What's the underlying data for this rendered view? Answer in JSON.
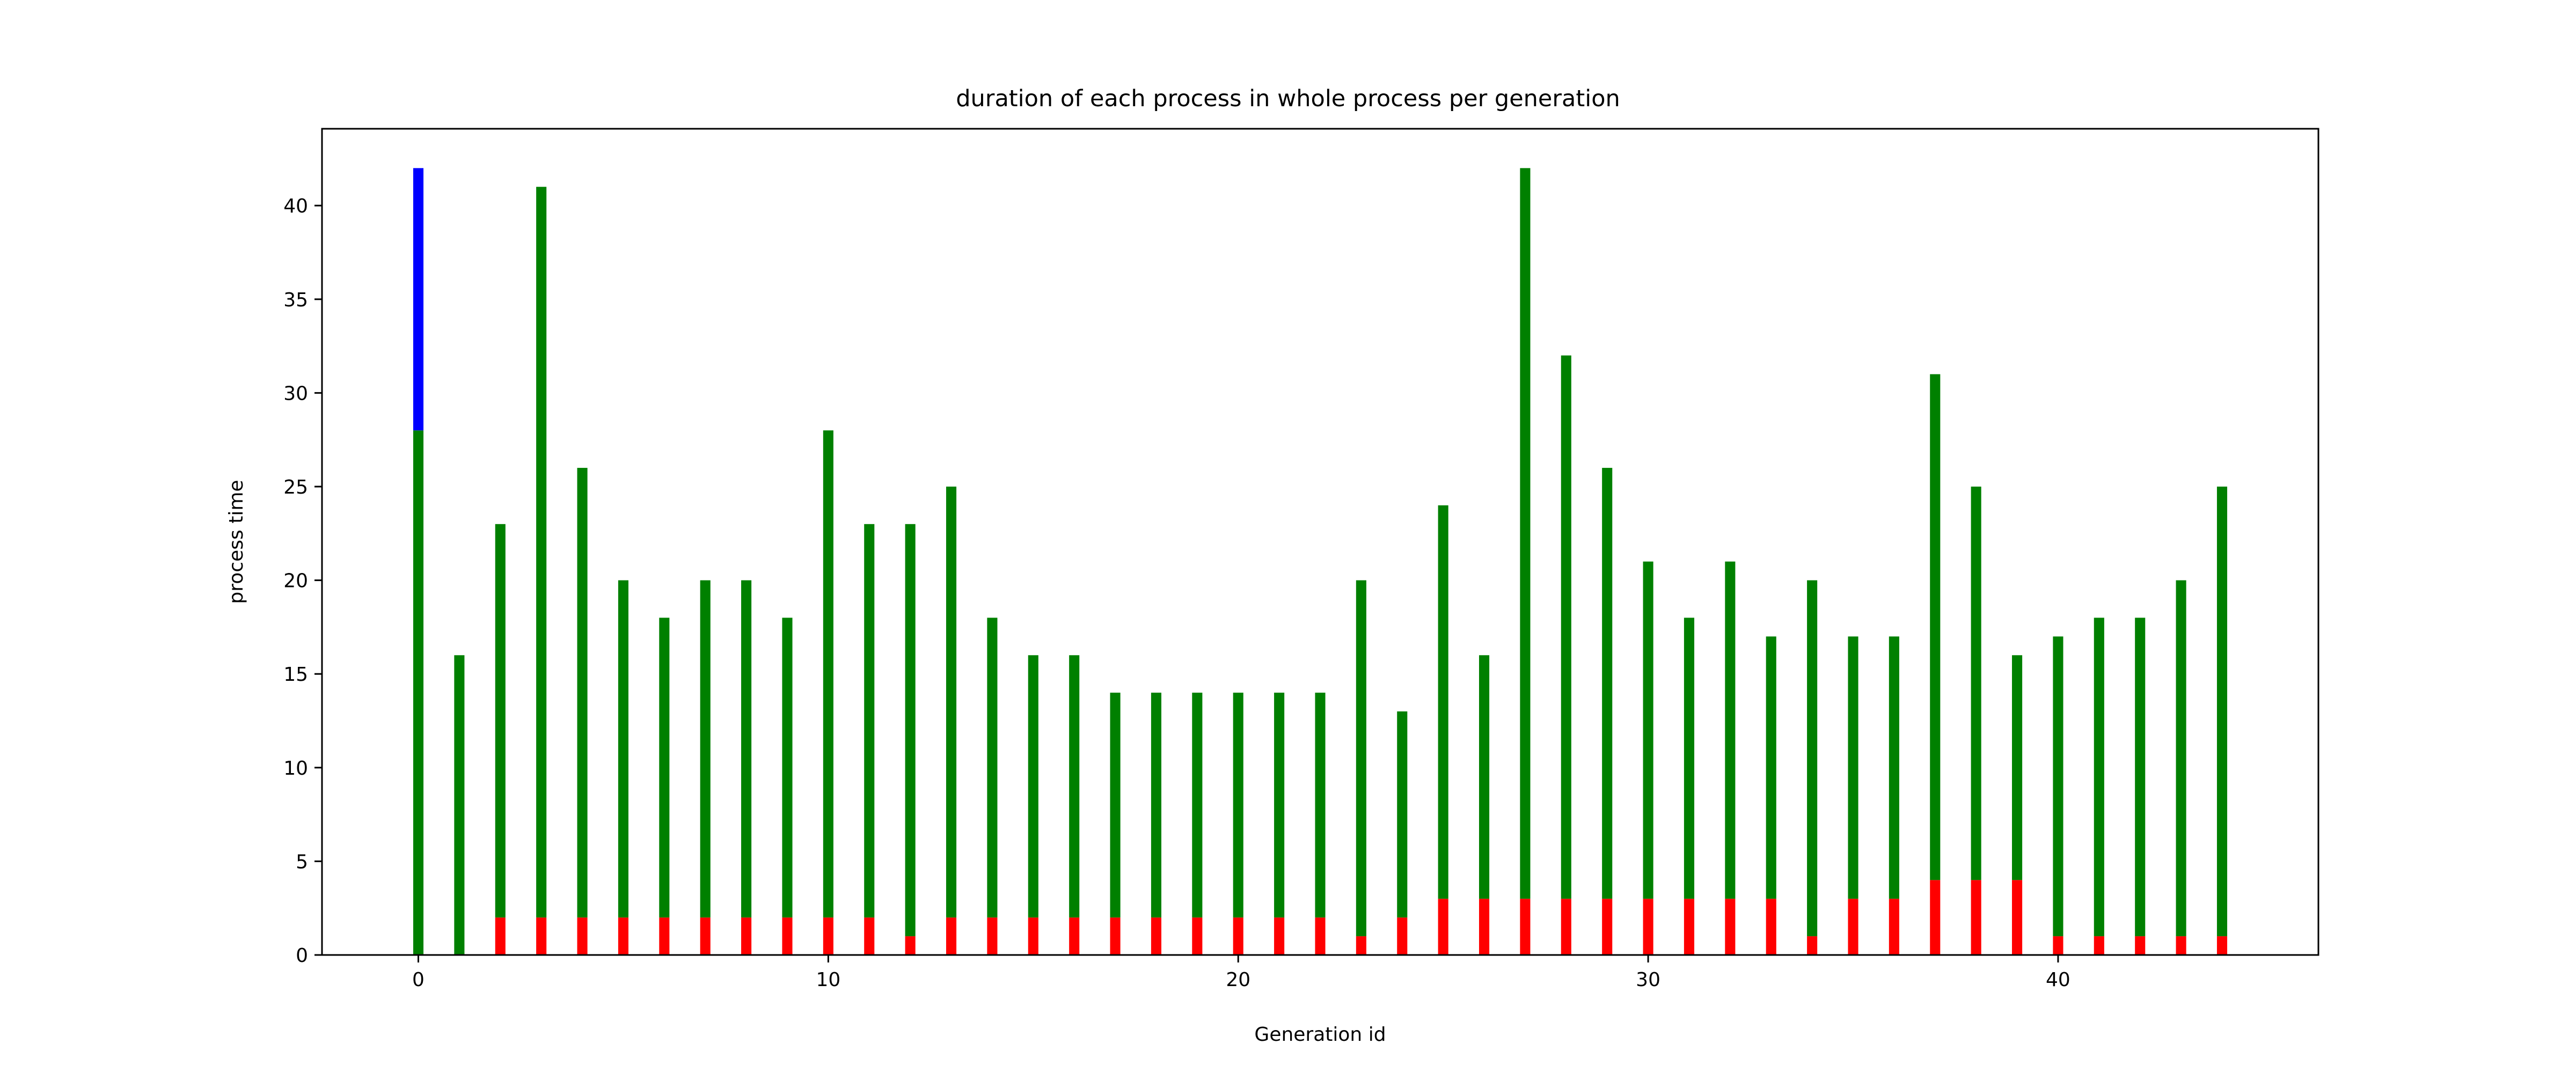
{
  "chart_data": {
    "type": "bar",
    "stacked": true,
    "title": "duration of each process in whole process per generation",
    "xlabel": "Generation id",
    "ylabel": "process time",
    "xlim": [
      -2.35,
      46.35
    ],
    "ylim": [
      0,
      44.1
    ],
    "xticks": [
      0,
      10,
      20,
      30,
      40
    ],
    "yticks": [
      0,
      5,
      10,
      15,
      20,
      25,
      30,
      35,
      40
    ],
    "grid": false,
    "legend": "none",
    "x": [
      0,
      1,
      2,
      3,
      4,
      5,
      6,
      7,
      8,
      9,
      10,
      11,
      12,
      13,
      14,
      15,
      16,
      17,
      18,
      19,
      20,
      21,
      22,
      23,
      24,
      25,
      26,
      27,
      28,
      29,
      30,
      31,
      32,
      33,
      34,
      35,
      36,
      37,
      38,
      39,
      40,
      41,
      42,
      43,
      44
    ],
    "series": [
      {
        "color": "#ff0000",
        "values": [
          0,
          0,
          2,
          2,
          2,
          2,
          2,
          2,
          2,
          2,
          2,
          2,
          1,
          2,
          2,
          2,
          2,
          2,
          2,
          2,
          2,
          2,
          2,
          1,
          2,
          3,
          3,
          3,
          3,
          3,
          3,
          3,
          3,
          3,
          1,
          3,
          3,
          4,
          4,
          4,
          1,
          1,
          1,
          1,
          1
        ]
      },
      {
        "color": "#008000",
        "values": [
          28,
          16,
          21,
          39,
          24,
          18,
          16,
          18,
          18,
          16,
          26,
          21,
          22,
          23,
          16,
          14,
          14,
          12,
          12,
          12,
          12,
          12,
          12,
          19,
          11,
          21,
          13,
          39,
          29,
          23,
          18,
          15,
          18,
          14,
          19,
          14,
          14,
          27,
          21,
          12,
          16,
          17,
          17,
          19,
          24
        ]
      },
      {
        "color": "#0000ff",
        "values": [
          14,
          0,
          0,
          0,
          0,
          0,
          0,
          0,
          0,
          0,
          0,
          0,
          0,
          0,
          0,
          0,
          0,
          0,
          0,
          0,
          0,
          0,
          0,
          0,
          0,
          0,
          0,
          0,
          0,
          0,
          0,
          0,
          0,
          0,
          0,
          0,
          0,
          0,
          0,
          0,
          0,
          0,
          0,
          0,
          0
        ]
      }
    ]
  }
}
